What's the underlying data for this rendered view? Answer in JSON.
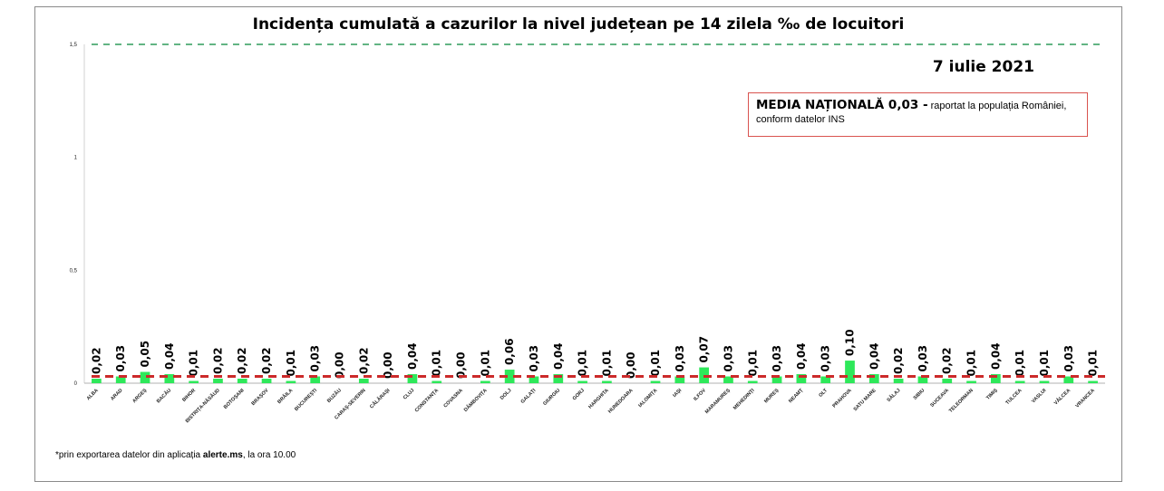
{
  "chart_data": {
    "type": "bar",
    "title": "Incidența cumulată a cazurilor la nivel județean pe 14 zilela ‰ de locuitori",
    "date": "7 iulie 2021",
    "categories": [
      "ALBA",
      "ARAD",
      "ARGEȘ",
      "BACĂU",
      "BIHOR",
      "BISTRIȚA-NĂSĂUD",
      "BOTOȘANI",
      "BRAȘOV",
      "BRĂILA",
      "BUCUREȘTI",
      "BUZĂU",
      "CARAȘ-SEVERIN",
      "CĂLĂRAȘI",
      "CLUJ",
      "CONSTANȚA",
      "COVASNA",
      "DÂMBOVIȚA",
      "DOLJ",
      "GALAȚI",
      "GIURGIU",
      "GORJ",
      "HARGHITA",
      "HUNEDOARA",
      "IALOMIȚA",
      "IAȘI",
      "ILFOV",
      "MARAMUREȘ",
      "MEHEDINȚI",
      "MUREȘ",
      "NEAMȚ",
      "OLT",
      "PRAHOVA",
      "SATU MARE",
      "SĂLAJ",
      "SIBIU",
      "SUCEAVA",
      "TELEORMAN",
      "TIMIȘ",
      "TULCEA",
      "VASLUI",
      "VÂLCEA",
      "VRANCEA"
    ],
    "values": [
      0.02,
      0.03,
      0.05,
      0.04,
      0.01,
      0.02,
      0.02,
      0.02,
      0.01,
      0.03,
      0.0,
      0.02,
      0.0,
      0.04,
      0.01,
      0.0,
      0.01,
      0.06,
      0.03,
      0.04,
      0.01,
      0.01,
      0.0,
      0.01,
      0.03,
      0.07,
      0.03,
      0.01,
      0.03,
      0.04,
      0.03,
      0.1,
      0.04,
      0.02,
      0.03,
      0.02,
      0.01,
      0.04,
      0.01,
      0.01,
      0.03,
      0.01
    ],
    "value_labels": [
      "0,02",
      "0,03",
      "0,05",
      "0,04",
      "0,01",
      "0,02",
      "0,02",
      "0,02",
      "0,01",
      "0,03",
      "0,00",
      "0,02",
      "0,00",
      "0,04",
      "0,01",
      "0,00",
      "0,01",
      "0,06",
      "0,03",
      "0,04",
      "0,01",
      "0,01",
      "0,00",
      "0,01",
      "0,03",
      "0,07",
      "0,03",
      "0,01",
      "0,03",
      "0,04",
      "0,03",
      "0,10",
      "0,04",
      "0,02",
      "0,03",
      "0,02",
      "0,01",
      "0,04",
      "0,01",
      "0,01",
      "0,03",
      "0,01"
    ],
    "ylim": [
      0,
      1.5
    ],
    "yticks": [
      0,
      0.5,
      1,
      1.5
    ],
    "ytick_labels": [
      "0",
      "0,5",
      "1",
      "1,5"
    ],
    "reference_lines": [
      {
        "value": 0.03,
        "color": "#cc2a2a",
        "style": "dashed"
      },
      {
        "value": 1.5,
        "color": "#2e9b5a",
        "style": "dashed"
      }
    ],
    "bar_color": "#2ee85a",
    "grid": false
  },
  "annotation": {
    "media_bold": "MEDIA NAȚIONALĂ 0,03 -",
    "media_rest": " raportat la populația României, conform datelor INS"
  },
  "footnote": {
    "prefix": "*prin exportarea datelor din aplicația ",
    "app": "alerte.ms",
    "suffix": ", la ora 10.00"
  }
}
